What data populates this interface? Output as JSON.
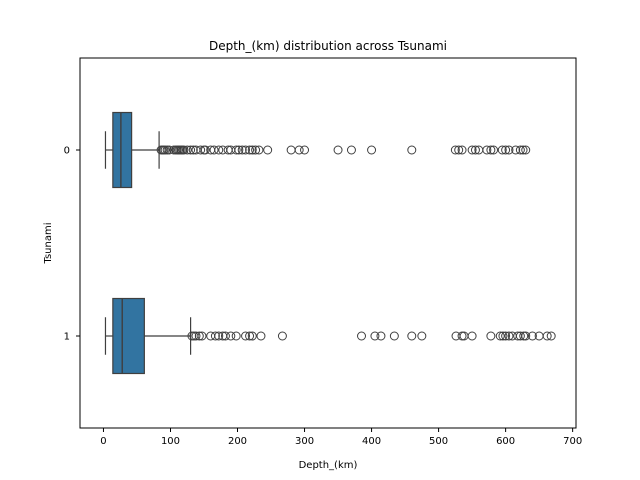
{
  "chart_data": {
    "type": "boxplot",
    "orientation": "horizontal",
    "title": "Depth_(km) distribution across Tsunami",
    "xlabel": "Depth_(km)",
    "ylabel": "Tsunami",
    "xlim": [
      -35,
      705
    ],
    "x_ticks": [
      0,
      100,
      200,
      300,
      400,
      500,
      600,
      700
    ],
    "categories": [
      "0",
      "1"
    ],
    "box_color": "#3274a1",
    "line_color": "#3f3f3f",
    "grid": false,
    "boxes": [
      {
        "category": "0",
        "whisker_low": 3,
        "q1": 14,
        "median": 26,
        "q3": 42,
        "whisker_high": 83,
        "outliers": [
          86,
          88,
          90,
          92,
          95,
          98,
          105,
          108,
          110,
          112,
          114,
          116,
          118,
          120,
          125,
          130,
          134,
          138,
          145,
          150,
          152,
          160,
          165,
          172,
          178,
          186,
          190,
          198,
          202,
          207,
          212,
          218,
          222,
          227,
          232,
          245,
          280,
          292,
          300,
          350,
          370,
          400,
          460,
          525,
          530,
          535,
          550,
          555,
          560,
          572,
          578,
          582,
          595,
          600,
          605,
          615,
          622,
          626,
          630
        ]
      },
      {
        "category": "1",
        "whisker_low": 3,
        "q1": 14,
        "median": 28,
        "q3": 61,
        "whisker_high": 130,
        "outliers": [
          132,
          135,
          138,
          143,
          147,
          160,
          167,
          172,
          178,
          182,
          190,
          198,
          212,
          218,
          222,
          235,
          267,
          385,
          405,
          414,
          434,
          460,
          475,
          526,
          535,
          538,
          550,
          578,
          592,
          596,
          600,
          605,
          610,
          618,
          622,
          627,
          630,
          640,
          650,
          662,
          668
        ]
      }
    ]
  }
}
